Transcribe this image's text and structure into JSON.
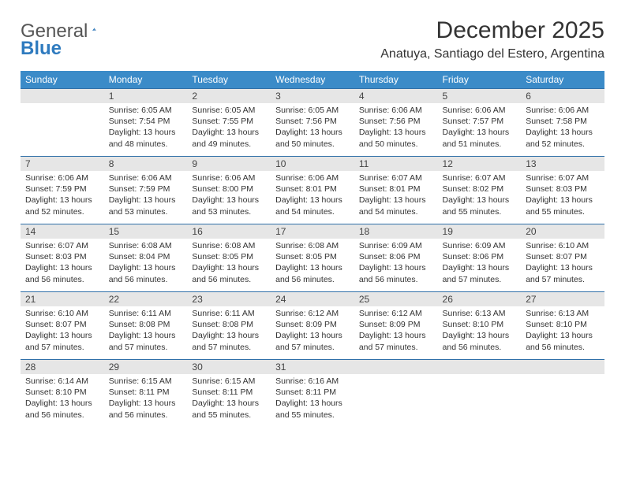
{
  "brand": {
    "part1": "General",
    "part2": "Blue"
  },
  "title": "December 2025",
  "location": "Anatuya, Santiago del Estero, Argentina",
  "colors": {
    "header_blue": "#3b8bc8",
    "rule_blue": "#2f6fa8",
    "daynum_bg": "#e6e6e6",
    "text": "#333333",
    "brand_blue": "#2f7bbf",
    "brand_gray": "#555555",
    "background": "#ffffff"
  },
  "weekdays": [
    "Sunday",
    "Monday",
    "Tuesday",
    "Wednesday",
    "Thursday",
    "Friday",
    "Saturday"
  ],
  "weeks": [
    [
      null,
      {
        "day": "1",
        "sunrise": "6:05 AM",
        "sunset": "7:54 PM",
        "daylight": "13 hours and 48 minutes."
      },
      {
        "day": "2",
        "sunrise": "6:05 AM",
        "sunset": "7:55 PM",
        "daylight": "13 hours and 49 minutes."
      },
      {
        "day": "3",
        "sunrise": "6:05 AM",
        "sunset": "7:56 PM",
        "daylight": "13 hours and 50 minutes."
      },
      {
        "day": "4",
        "sunrise": "6:06 AM",
        "sunset": "7:56 PM",
        "daylight": "13 hours and 50 minutes."
      },
      {
        "day": "5",
        "sunrise": "6:06 AM",
        "sunset": "7:57 PM",
        "daylight": "13 hours and 51 minutes."
      },
      {
        "day": "6",
        "sunrise": "6:06 AM",
        "sunset": "7:58 PM",
        "daylight": "13 hours and 52 minutes."
      }
    ],
    [
      {
        "day": "7",
        "sunrise": "6:06 AM",
        "sunset": "7:59 PM",
        "daylight": "13 hours and 52 minutes."
      },
      {
        "day": "8",
        "sunrise": "6:06 AM",
        "sunset": "7:59 PM",
        "daylight": "13 hours and 53 minutes."
      },
      {
        "day": "9",
        "sunrise": "6:06 AM",
        "sunset": "8:00 PM",
        "daylight": "13 hours and 53 minutes."
      },
      {
        "day": "10",
        "sunrise": "6:06 AM",
        "sunset": "8:01 PM",
        "daylight": "13 hours and 54 minutes."
      },
      {
        "day": "11",
        "sunrise": "6:07 AM",
        "sunset": "8:01 PM",
        "daylight": "13 hours and 54 minutes."
      },
      {
        "day": "12",
        "sunrise": "6:07 AM",
        "sunset": "8:02 PM",
        "daylight": "13 hours and 55 minutes."
      },
      {
        "day": "13",
        "sunrise": "6:07 AM",
        "sunset": "8:03 PM",
        "daylight": "13 hours and 55 minutes."
      }
    ],
    [
      {
        "day": "14",
        "sunrise": "6:07 AM",
        "sunset": "8:03 PM",
        "daylight": "13 hours and 56 minutes."
      },
      {
        "day": "15",
        "sunrise": "6:08 AM",
        "sunset": "8:04 PM",
        "daylight": "13 hours and 56 minutes."
      },
      {
        "day": "16",
        "sunrise": "6:08 AM",
        "sunset": "8:05 PM",
        "daylight": "13 hours and 56 minutes."
      },
      {
        "day": "17",
        "sunrise": "6:08 AM",
        "sunset": "8:05 PM",
        "daylight": "13 hours and 56 minutes."
      },
      {
        "day": "18",
        "sunrise": "6:09 AM",
        "sunset": "8:06 PM",
        "daylight": "13 hours and 56 minutes."
      },
      {
        "day": "19",
        "sunrise": "6:09 AM",
        "sunset": "8:06 PM",
        "daylight": "13 hours and 57 minutes."
      },
      {
        "day": "20",
        "sunrise": "6:10 AM",
        "sunset": "8:07 PM",
        "daylight": "13 hours and 57 minutes."
      }
    ],
    [
      {
        "day": "21",
        "sunrise": "6:10 AM",
        "sunset": "8:07 PM",
        "daylight": "13 hours and 57 minutes."
      },
      {
        "day": "22",
        "sunrise": "6:11 AM",
        "sunset": "8:08 PM",
        "daylight": "13 hours and 57 minutes."
      },
      {
        "day": "23",
        "sunrise": "6:11 AM",
        "sunset": "8:08 PM",
        "daylight": "13 hours and 57 minutes."
      },
      {
        "day": "24",
        "sunrise": "6:12 AM",
        "sunset": "8:09 PM",
        "daylight": "13 hours and 57 minutes."
      },
      {
        "day": "25",
        "sunrise": "6:12 AM",
        "sunset": "8:09 PM",
        "daylight": "13 hours and 57 minutes."
      },
      {
        "day": "26",
        "sunrise": "6:13 AM",
        "sunset": "8:10 PM",
        "daylight": "13 hours and 56 minutes."
      },
      {
        "day": "27",
        "sunrise": "6:13 AM",
        "sunset": "8:10 PM",
        "daylight": "13 hours and 56 minutes."
      }
    ],
    [
      {
        "day": "28",
        "sunrise": "6:14 AM",
        "sunset": "8:10 PM",
        "daylight": "13 hours and 56 minutes."
      },
      {
        "day": "29",
        "sunrise": "6:15 AM",
        "sunset": "8:11 PM",
        "daylight": "13 hours and 56 minutes."
      },
      {
        "day": "30",
        "sunrise": "6:15 AM",
        "sunset": "8:11 PM",
        "daylight": "13 hours and 55 minutes."
      },
      {
        "day": "31",
        "sunrise": "6:16 AM",
        "sunset": "8:11 PM",
        "daylight": "13 hours and 55 minutes."
      },
      null,
      null,
      null
    ]
  ],
  "labels": {
    "sunrise": "Sunrise:",
    "sunset": "Sunset:",
    "daylight": "Daylight:"
  }
}
